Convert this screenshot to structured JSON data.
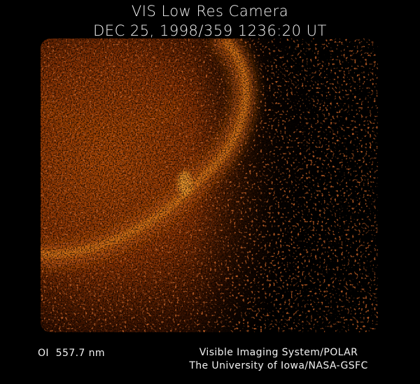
{
  "header": {
    "title": "VIS Low Res Camera",
    "subtitle": "DEC 25, 1998/359 1236:20 UT"
  },
  "footer": {
    "wavelength": "OI  557.7 nm",
    "credit_lines": [
      "Visible Imaging System/POLAR",
      "The University of Iowa/NASA-GSFC"
    ]
  }
}
